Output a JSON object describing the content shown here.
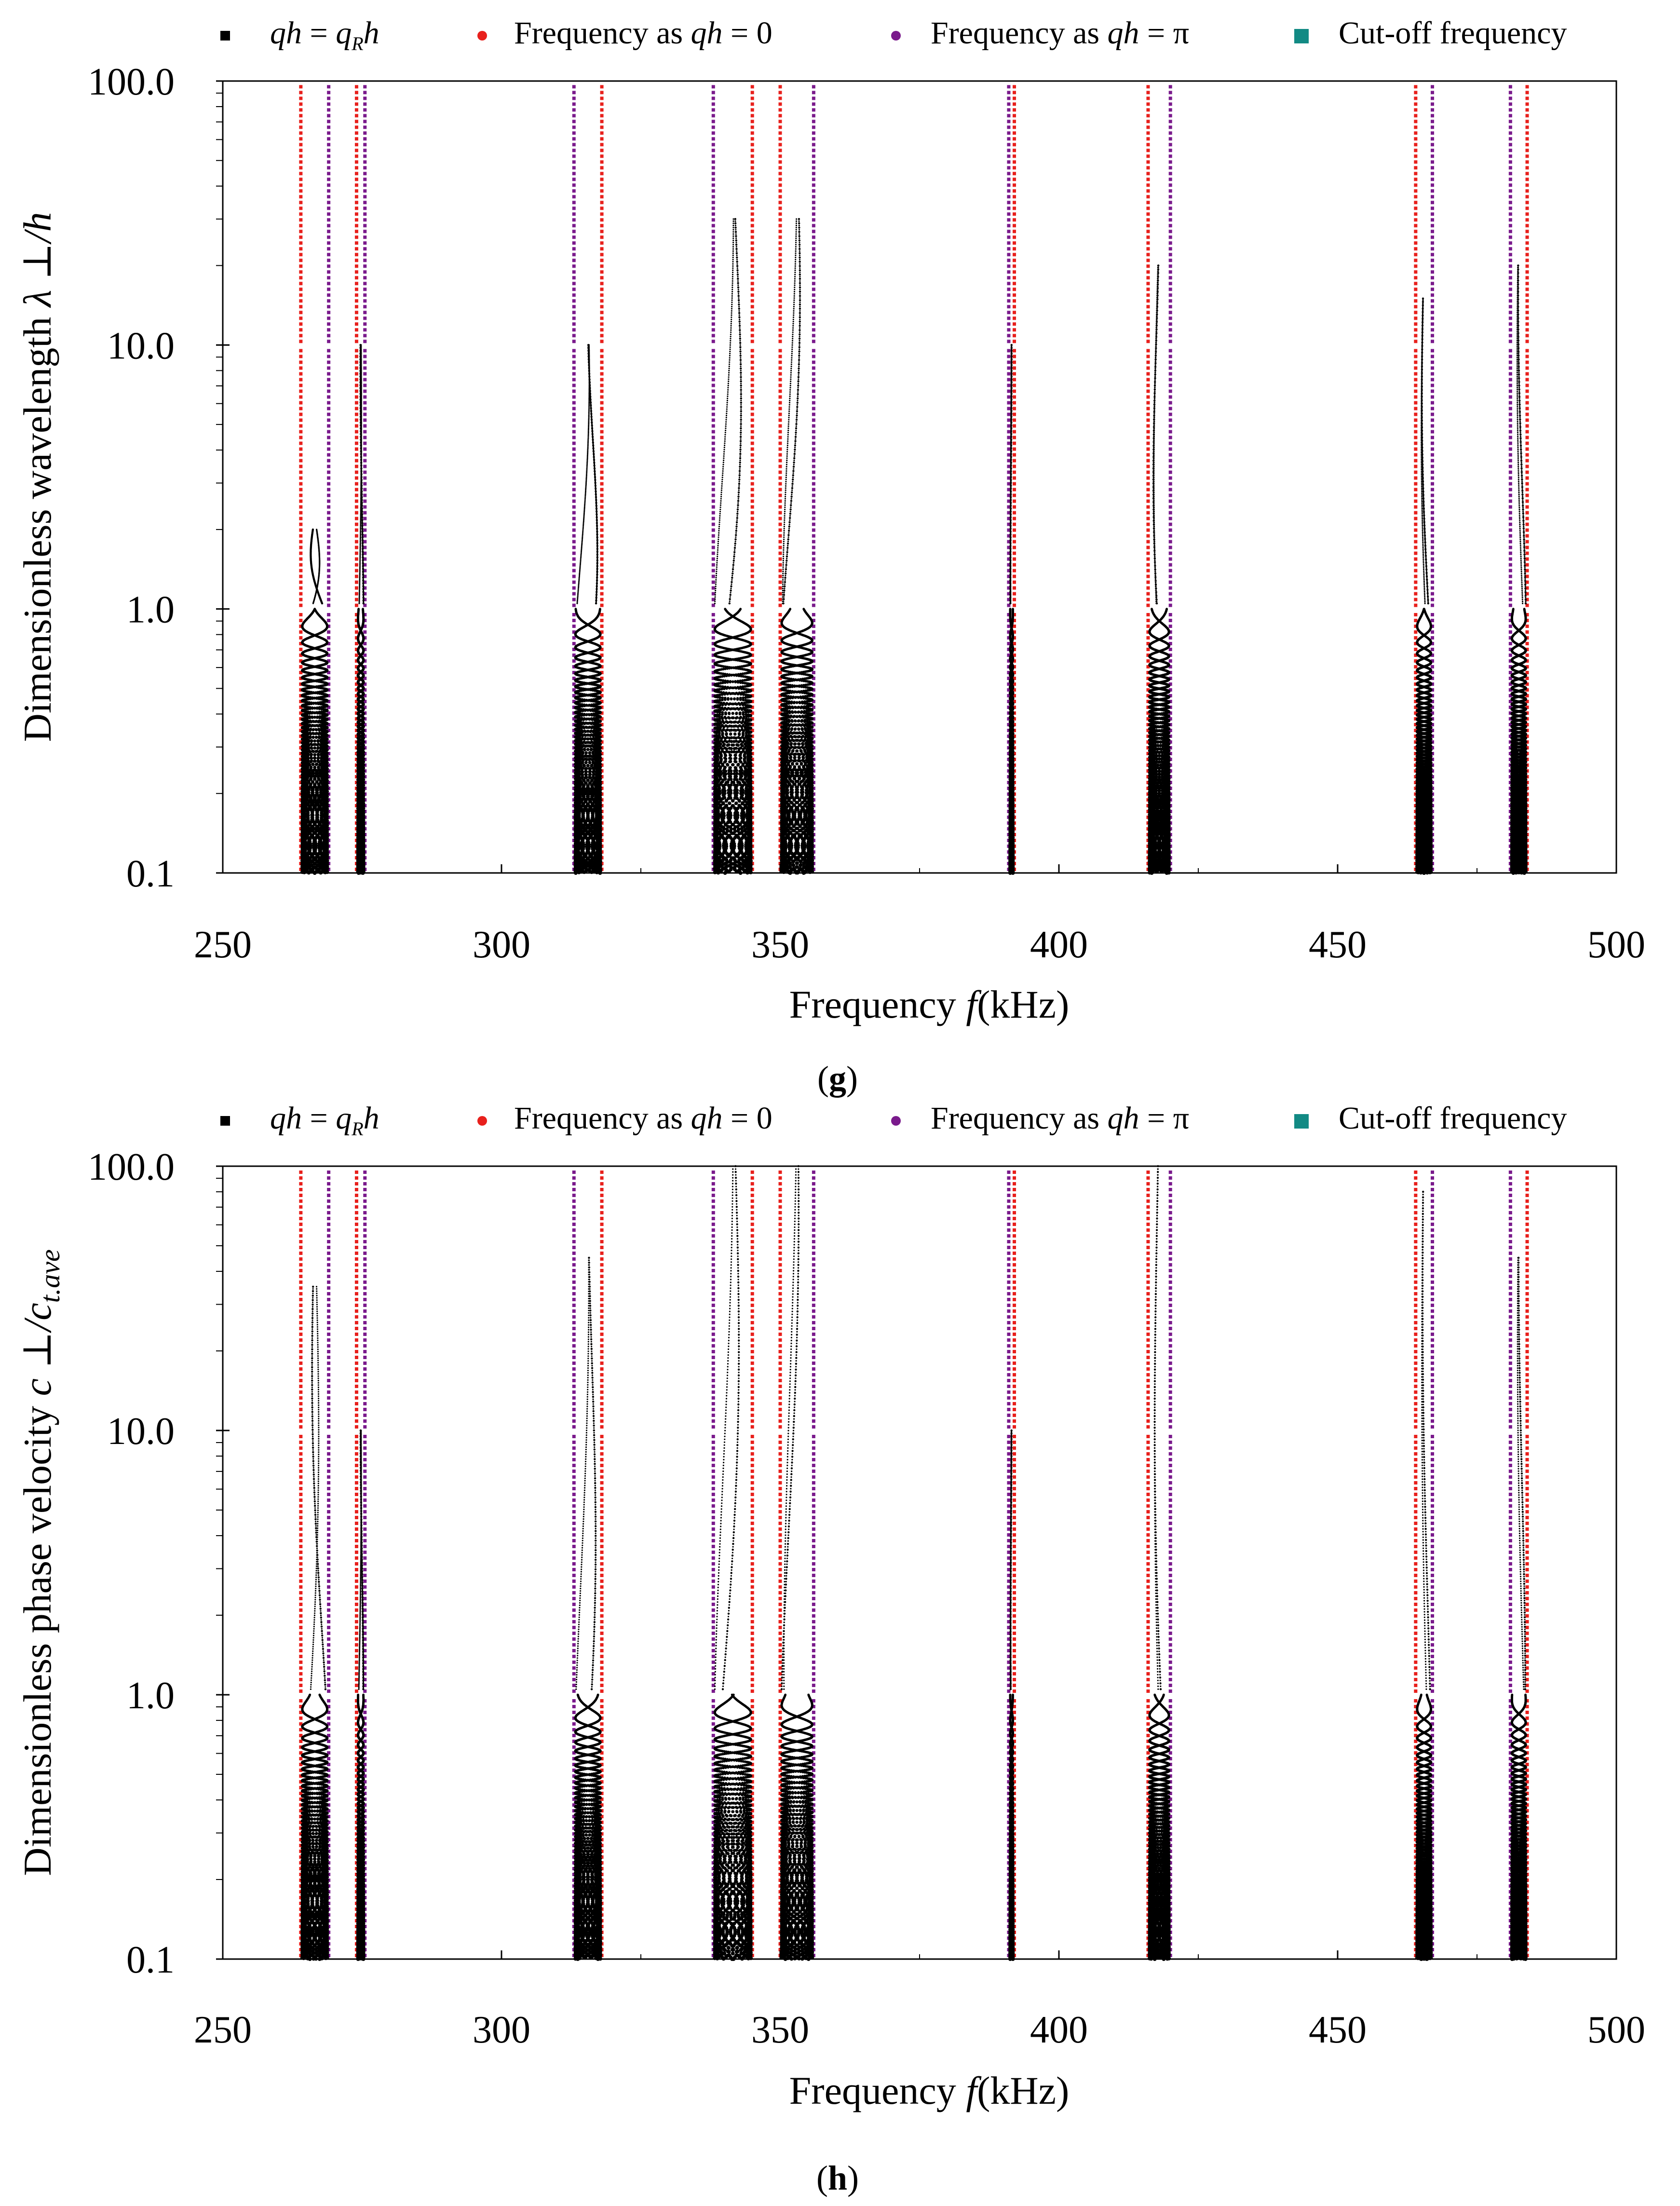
{
  "legend": [
    {
      "label": "qh = q_R h",
      "symbol": "square",
      "color": "#000000"
    },
    {
      "label": "Frequency as qh = 0",
      "symbol": "circle",
      "color": "#e8201c"
    },
    {
      "label": "Frequency as qh = π",
      "symbol": "circle",
      "color": "#7a1a8c"
    },
    {
      "label": "Cut-off frequency",
      "symbol": "square",
      "color": "#128a84"
    }
  ],
  "legend_texts": {
    "s1_a": "qh",
    "s1_b": " = ",
    "s1_c": "q",
    "s1_d": "R",
    "s1_e": "h",
    "s2_a": "Frequency as ",
    "s2_b": "qh",
    "s2_c": " = 0",
    "s3_a": "Frequency as ",
    "s3_b": "qh",
    "s3_c": " = π",
    "s4_a": "Cut-off frequency"
  },
  "colors": {
    "red": "#e8201c",
    "purple": "#7a1a8c",
    "black": "#000000",
    "teal": "#128a84"
  },
  "chart_data": [
    {
      "type": "scatter",
      "panel": "(g)",
      "panel_letter": "g",
      "title": "",
      "xlabel": "Frequency",
      "xlabel_symbol": "f",
      "xlabel_unit": "(kHz)",
      "ylabel": "Dimensionless wavelength",
      "ylabel_symbol": "λ ⊥/h",
      "xlim": [
        250,
        500
      ],
      "ylim": [
        0.1,
        100
      ],
      "yscale": "log",
      "x_ticks": [
        "250",
        "300",
        "350",
        "400",
        "450",
        "500"
      ],
      "y_ticks": [
        "0.1",
        "1.0",
        "10.0",
        "100.0"
      ],
      "red_lines_qh0_kHz": [
        264,
        274,
        318,
        345,
        350,
        392,
        416,
        464,
        484
      ],
      "purple_lines_qhpi_kHz": [
        269,
        275.5,
        313,
        338,
        356,
        391,
        420,
        467,
        481
      ],
      "series": [
        {
          "name": "qh = q_R h",
          "band_kHz": [
            264,
            269
          ],
          "peak_y": 2.0
        },
        {
          "name": "qh = q_R h",
          "band_kHz": [
            274,
            275.5
          ],
          "peak_y": 10.0
        },
        {
          "name": "qh = q_R h",
          "band_kHz": [
            313,
            318
          ],
          "peak_y": 10.0
        },
        {
          "name": "qh = q_R h",
          "band_kHz": [
            338,
            345
          ],
          "peak_y": 30.0
        },
        {
          "name": "qh = q_R h",
          "band_kHz": [
            350,
            356
          ],
          "peak_y": 30.0
        },
        {
          "name": "qh = q_R h",
          "band_kHz": [
            391,
            392
          ],
          "peak_y": 10.0
        },
        {
          "name": "qh = q_R h",
          "band_kHz": [
            416,
            420
          ],
          "peak_y": 20.0
        },
        {
          "name": "qh = q_R h",
          "band_kHz": [
            464,
            467
          ],
          "peak_y": 15.0
        },
        {
          "name": "qh = q_R h",
          "band_kHz": [
            481,
            484
          ],
          "peak_y": 20.0
        }
      ]
    },
    {
      "type": "scatter",
      "panel": "(h)",
      "panel_letter": "h",
      "title": "",
      "xlabel": "Frequency",
      "xlabel_symbol": "f",
      "xlabel_unit": "(kHz)",
      "ylabel": "Dimensionless phase velocity",
      "ylabel_symbol": "c ⊥/c",
      "ylabel_sub": "t.ave",
      "xlim": [
        250,
        500
      ],
      "ylim": [
        0.1,
        100
      ],
      "yscale": "log",
      "x_ticks": [
        "250",
        "300",
        "350",
        "400",
        "450",
        "500"
      ],
      "y_ticks": [
        "0.1",
        "1.0",
        "10.0",
        "100.0"
      ],
      "red_lines_qh0_kHz": [
        264,
        274,
        318,
        345,
        350,
        392,
        416,
        464,
        484
      ],
      "purple_lines_qhpi_kHz": [
        269,
        275.5,
        313,
        338,
        356,
        391,
        420,
        467,
        481
      ],
      "series": [
        {
          "name": "qh = q_R h",
          "band_kHz": [
            264,
            269
          ],
          "peak_y": 35.0
        },
        {
          "name": "qh = q_R h",
          "band_kHz": [
            274,
            275.5
          ],
          "peak_y": 10.0
        },
        {
          "name": "qh = q_R h",
          "band_kHz": [
            313,
            318
          ],
          "peak_y": 45.0
        },
        {
          "name": "qh = q_R h",
          "band_kHz": [
            338,
            345
          ],
          "peak_y": 100.0
        },
        {
          "name": "qh = q_R h",
          "band_kHz": [
            350,
            356
          ],
          "peak_y": 100.0
        },
        {
          "name": "qh = q_R h",
          "band_kHz": [
            391,
            392
          ],
          "peak_y": 10.0
        },
        {
          "name": "qh = q_R h",
          "band_kHz": [
            416,
            420
          ],
          "peak_y": 100.0
        },
        {
          "name": "qh = q_R h",
          "band_kHz": [
            464,
            467
          ],
          "peak_y": 80.0
        },
        {
          "name": "qh = q_R h",
          "band_kHz": [
            481,
            484
          ],
          "peak_y": 45.0
        }
      ]
    }
  ]
}
